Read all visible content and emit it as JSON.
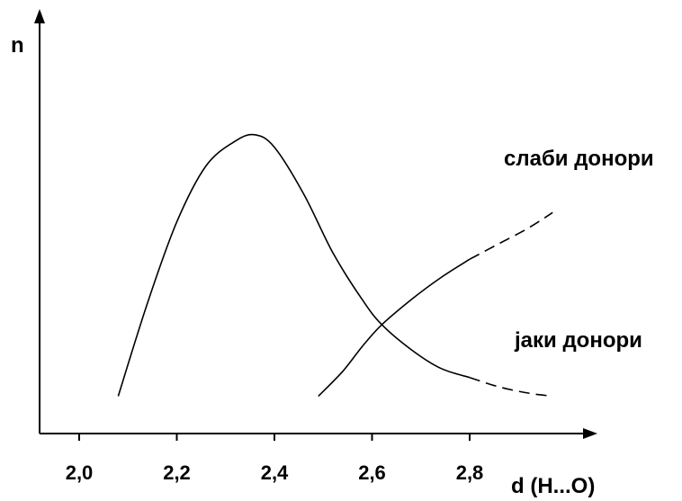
{
  "chart_data": {
    "type": "line",
    "title": "",
    "xlabel": "d (H...O)",
    "ylabel": "n",
    "xlim": [
      1.92,
      2.99
    ],
    "ylim": [
      0,
      1
    ],
    "grid": false,
    "x_ticks": [
      "2,0",
      "2,2",
      "2,4",
      "2,6",
      "2,8"
    ],
    "x_tick_values": [
      2.0,
      2.2,
      2.4,
      2.6,
      2.8
    ],
    "series": [
      {
        "name": "јаки донори",
        "points": [
          [
            2.08,
            0.12
          ],
          [
            2.14,
            0.42
          ],
          [
            2.2,
            0.68
          ],
          [
            2.26,
            0.86
          ],
          [
            2.32,
            0.94
          ],
          [
            2.36,
            0.96
          ],
          [
            2.4,
            0.92
          ],
          [
            2.46,
            0.77
          ],
          [
            2.52,
            0.58
          ],
          [
            2.58,
            0.43
          ],
          [
            2.62,
            0.35
          ],
          [
            2.68,
            0.27
          ],
          [
            2.74,
            0.21
          ],
          [
            2.8,
            0.18
          ]
        ],
        "dashed_from": 2.8,
        "dashed_points": [
          [
            2.8,
            0.18
          ],
          [
            2.86,
            0.15
          ],
          [
            2.92,
            0.13
          ],
          [
            2.97,
            0.12
          ]
        ]
      },
      {
        "name": "слаби донори",
        "points": [
          [
            2.49,
            0.12
          ],
          [
            2.54,
            0.2
          ],
          [
            2.58,
            0.28
          ],
          [
            2.62,
            0.35
          ],
          [
            2.68,
            0.43
          ],
          [
            2.74,
            0.5
          ],
          [
            2.8,
            0.56
          ]
        ],
        "dashed_from": 2.8,
        "dashed_points": [
          [
            2.8,
            0.56
          ],
          [
            2.86,
            0.61
          ],
          [
            2.92,
            0.66
          ],
          [
            2.97,
            0.71
          ]
        ]
      }
    ],
    "annotations": {
      "weak_label": "слаби донори",
      "strong_label": "јаки донори"
    }
  }
}
